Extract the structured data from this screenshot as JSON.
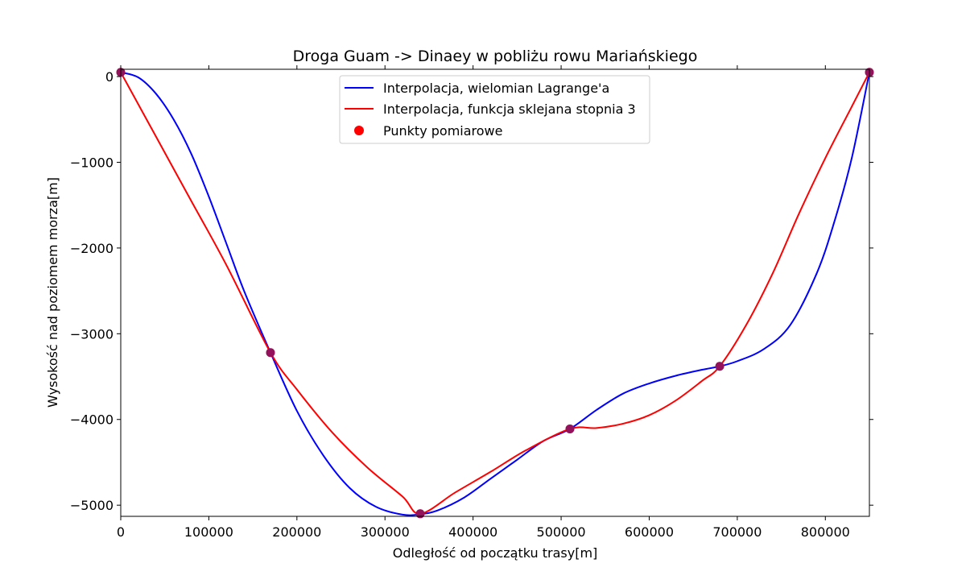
{
  "chart_data": {
    "type": "line",
    "title": "Droga  Guam -> Dinaey  w pobliżu rowu Mariańskiego",
    "xlabel": "Odległość od początku trasy[m]",
    "ylabel": "Wysokość nad poziomem morza[m]",
    "xlim": [
      0,
      850000
    ],
    "ylim": [
      -5130,
      85
    ],
    "x_ticks": [
      0,
      100000,
      200000,
      300000,
      400000,
      500000,
      600000,
      700000,
      800000
    ],
    "y_ticks": [
      0,
      -1000,
      -2000,
      -3000,
      -4000,
      -5000
    ],
    "x_tick_labels": [
      "0",
      "100000",
      "200000",
      "300000",
      "400000",
      "500000",
      "600000",
      "700000",
      "800000"
    ],
    "y_tick_labels": [
      "0",
      "−1000",
      "−2000",
      "−3000",
      "−4000",
      "−5000"
    ],
    "grid": false,
    "legend_position": "upper center",
    "series": [
      {
        "name": "Interpolacja, wielomian Lagrange'a",
        "kind": "line",
        "color": "#0000ff",
        "x": [
          0,
          20000,
          40000,
          60000,
          80000,
          100000,
          120000,
          140000,
          170000,
          200000,
          230000,
          260000,
          290000,
          320000,
          340000,
          360000,
          390000,
          420000,
          450000,
          480000,
          510000,
          540000,
          570000,
          600000,
          630000,
          660000,
          680000,
          700000,
          730000,
          760000,
          790000,
          810000,
          830000,
          850000
        ],
        "y": [
          50,
          -10,
          -200,
          -500,
          -900,
          -1400,
          -1950,
          -2500,
          -3220,
          -3900,
          -4420,
          -4800,
          -5020,
          -5110,
          -5105,
          -5060,
          -4910,
          -4690,
          -4470,
          -4250,
          -4110,
          -3890,
          -3700,
          -3580,
          -3490,
          -3420,
          -3380,
          -3320,
          -3180,
          -2900,
          -2300,
          -1700,
          -950,
          50
        ]
      },
      {
        "name": "Interpolacja, funkcja sklejana stopnia 3",
        "kind": "line",
        "color": "#ff0000",
        "x": [
          0,
          40000,
          80000,
          120000,
          170000,
          200000,
          240000,
          280000,
          320000,
          340000,
          380000,
          420000,
          460000,
          510000,
          540000,
          570000,
          600000,
          630000,
          660000,
          680000,
          710000,
          740000,
          770000,
          800000,
          830000,
          850000
        ],
        "y": [
          50,
          -700,
          -1450,
          -2200,
          -3220,
          -3650,
          -4150,
          -4560,
          -4900,
          -5100,
          -4850,
          -4610,
          -4360,
          -4110,
          -4100,
          -4050,
          -3950,
          -3780,
          -3550,
          -3380,
          -2900,
          -2300,
          -1600,
          -950,
          -350,
          50
        ]
      },
      {
        "name": "Punkty pomiarowe",
        "kind": "scatter",
        "color": "#ff0000",
        "x": [
          0,
          170000,
          340000,
          510000,
          680000,
          850000
        ],
        "y": [
          50,
          -3220,
          -5100,
          -4110,
          -3380,
          50
        ]
      }
    ]
  }
}
